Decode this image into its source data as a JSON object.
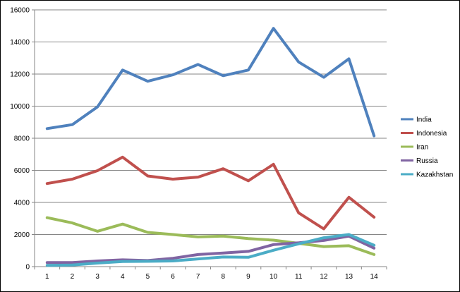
{
  "chart_data": {
    "type": "line",
    "x": [
      1,
      2,
      3,
      4,
      5,
      6,
      7,
      8,
      9,
      10,
      11,
      12,
      13,
      14
    ],
    "ylim": [
      0,
      16000
    ],
    "yticks": [
      0,
      2000,
      4000,
      6000,
      8000,
      10000,
      12000,
      14000,
      16000
    ],
    "grid": true,
    "legend_position": "right",
    "series": [
      {
        "name": "India",
        "color": "#4F81BD",
        "values": [
          8600,
          8850,
          9950,
          12250,
          11550,
          11950,
          12600,
          11900,
          12250,
          14850,
          12750,
          11800,
          12950,
          8150
        ]
      },
      {
        "name": "Indonesia",
        "color": "#C0504D",
        "values": [
          5180,
          5450,
          5980,
          6820,
          5650,
          5450,
          5580,
          6100,
          5350,
          6380,
          3350,
          2350,
          4320,
          3080
        ]
      },
      {
        "name": "Iran",
        "color": "#9BBB59",
        "values": [
          3050,
          2720,
          2200,
          2650,
          2130,
          2000,
          1850,
          1900,
          1750,
          1650,
          1450,
          1250,
          1300,
          750
        ]
      },
      {
        "name": "Russia",
        "color": "#8064A2",
        "values": [
          250,
          250,
          350,
          420,
          380,
          520,
          750,
          850,
          950,
          1370,
          1480,
          1630,
          1900,
          1150
        ]
      },
      {
        "name": "Kazakhstan",
        "color": "#4BACC6",
        "values": [
          80,
          100,
          220,
          320,
          330,
          350,
          480,
          600,
          580,
          1020,
          1420,
          1800,
          2000,
          1330
        ]
      }
    ]
  }
}
